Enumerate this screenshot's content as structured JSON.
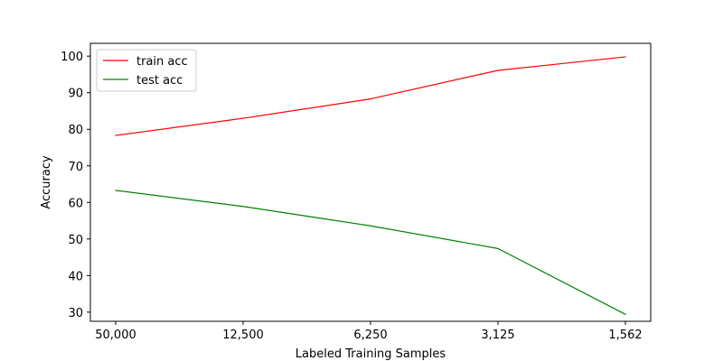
{
  "chart_data": {
    "type": "line",
    "title": "",
    "xlabel": "Labeled Training Samples",
    "ylabel": "Accuracy",
    "categories": [
      "50,000",
      "12,500",
      "6,250",
      "3,125",
      "1,562"
    ],
    "ylim": [
      27.5,
      103.5
    ],
    "yticks": [
      30,
      40,
      50,
      60,
      70,
      80,
      90,
      100
    ],
    "grid": false,
    "legend_position": "top-left",
    "series": [
      {
        "name": "train acc",
        "color": "#ff0000",
        "values": [
          78.3,
          83.0,
          88.3,
          96.1,
          99.8
        ]
      },
      {
        "name": "test acc",
        "color": "#008000",
        "values": [
          63.3,
          58.9,
          53.6,
          47.4,
          29.4
        ]
      }
    ]
  }
}
